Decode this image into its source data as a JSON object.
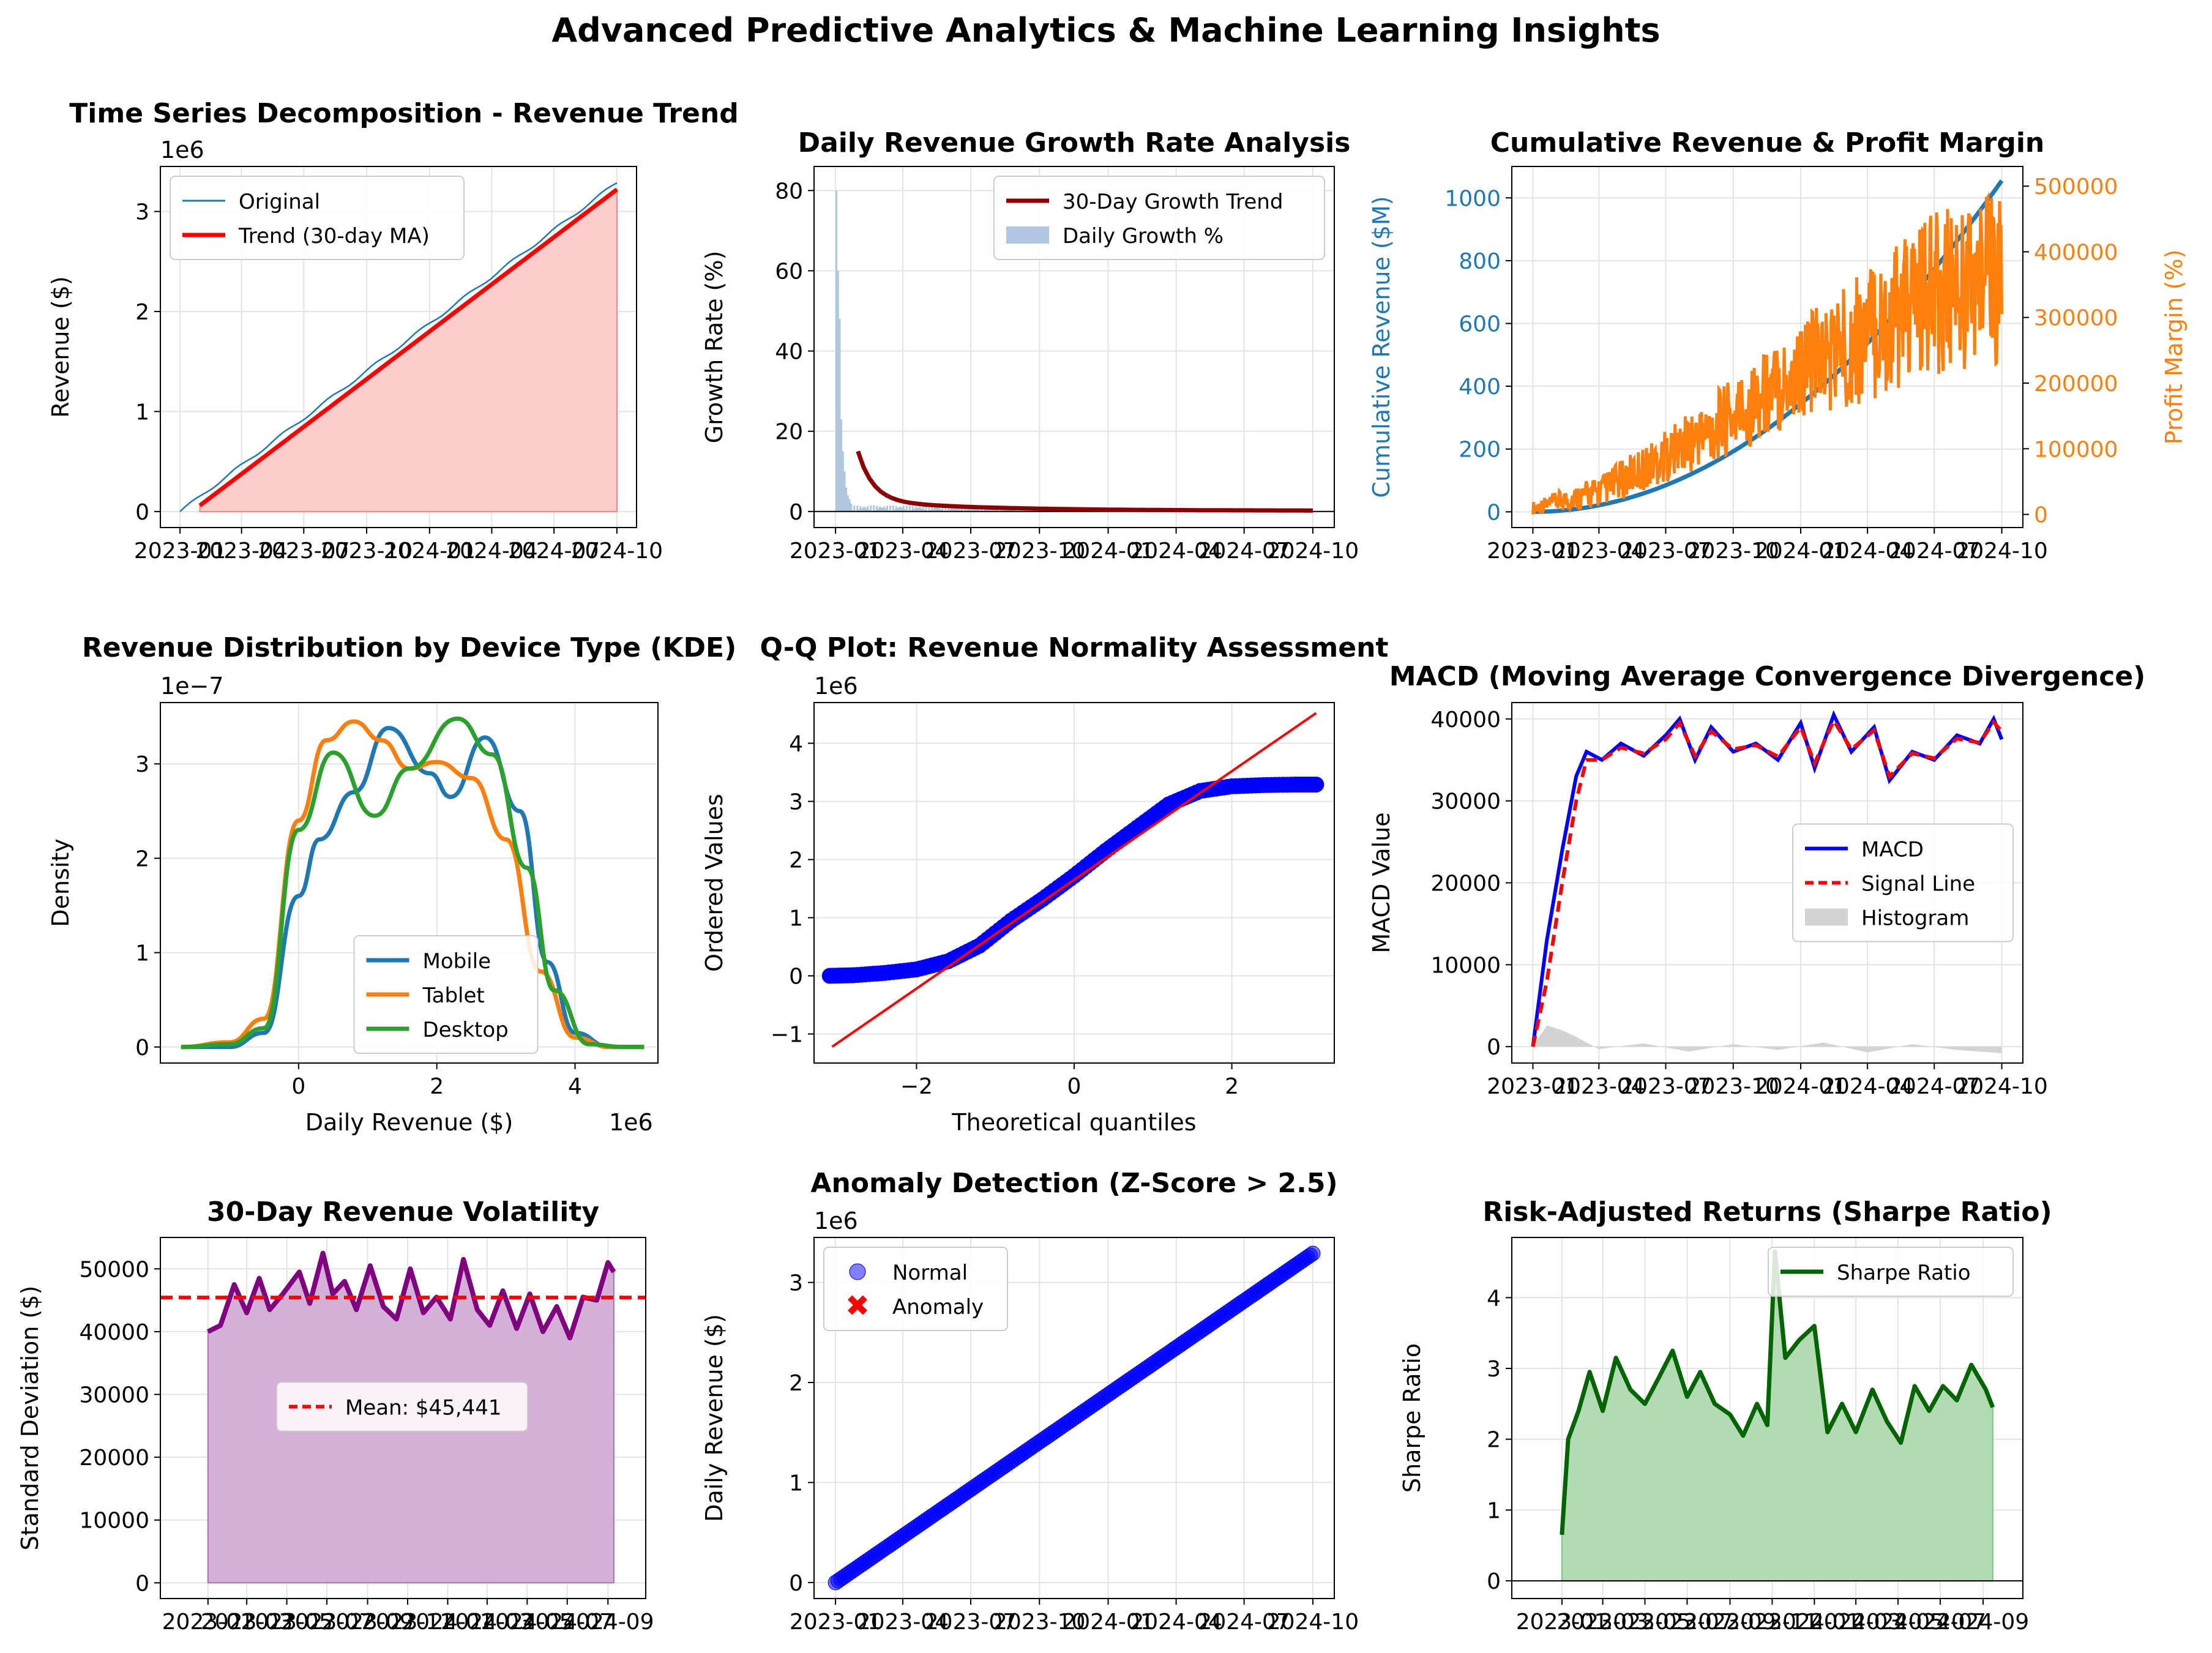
{
  "suptitle": "Advanced Predictive Analytics & Machine Learning Insights",
  "colors": {
    "revenue_blue": "#1f77b4",
    "trend_red": "#ff0000",
    "fill_red": "#ffcccc",
    "growth_bar": "#b0c8df",
    "growth_trend": "#8b0000",
    "profit_orange": "#ff7f0e",
    "tablet": "#ff7f0e",
    "desktop": "#2ca02c",
    "macd_blue": "#0000ff",
    "hist_gray": "#d3d3d3",
    "vol_purple": "#800080",
    "vol_fill": "#d4b0d8",
    "sharpe_green": "#006400",
    "sharpe_fill": "#b3dbb3"
  },
  "chart_data": [
    {
      "id": "ts",
      "type": "line+area",
      "title": "Time Series Decomposition - Revenue Trend",
      "xlabel": "",
      "ylabel": "Revenue ($)",
      "offset_text": "1e6",
      "x_range": [
        "2023-01-01",
        "2024-10-01"
      ],
      "x_ticks": [
        "2023-01",
        "2023-04",
        "2023-07",
        "2023-10",
        "2024-01",
        "2024-04",
        "2024-07",
        "2024-10"
      ],
      "ylim": [
        -0.16,
        3.45
      ],
      "y_ticks": [
        "0",
        "1",
        "2",
        "3"
      ],
      "legend_position": "upper-left",
      "grid": true,
      "series": [
        {
          "name": "Original",
          "from": "2023-01-01",
          "to": "2024-10-01",
          "y_start": 0.0,
          "y_end": 3.29,
          "units": "millions"
        },
        {
          "name": "Trend (30-day MA)",
          "from": "2023-01-30",
          "to": "2024-10-01",
          "y_start": 0.06,
          "y_end": 3.22,
          "units": "millions"
        }
      ]
    },
    {
      "id": "growth",
      "type": "bar+line",
      "title": "Daily Revenue Growth Rate Analysis",
      "xlabel": "",
      "ylabel": "Growth Rate (%)",
      "x_range": [
        "2023-01-01",
        "2024-10-01"
      ],
      "x_ticks": [
        "2023-01",
        "2023-04",
        "2023-07",
        "2023-10",
        "2024-01",
        "2024-04",
        "2024-07",
        "2024-10"
      ],
      "ylim": [
        -4,
        86
      ],
      "y_ticks": [
        "0",
        "20",
        "40",
        "60",
        "80"
      ],
      "legend_position": "upper-right",
      "grid": true,
      "series": [
        {
          "name": "30-Day Growth Trend",
          "from": "2023-01-31",
          "to": "2024-10-01",
          "y_start": 12.5,
          "y_end": 0.2
        },
        {
          "name": "Daily Growth %",
          "peak_values": [
            80,
            60,
            48,
            23,
            15,
            10,
            6,
            4,
            3,
            2
          ]
        }
      ]
    },
    {
      "id": "cum",
      "type": "dual-axis line",
      "title": "Cumulative Revenue & Profit Margin",
      "xlabel": "",
      "ylabel": "Cumulative Revenue ($M)",
      "ylabel_right": "Profit Margin (%)",
      "x_range": [
        "2023-01-01",
        "2024-10-01"
      ],
      "x_ticks": [
        "2023-01",
        "2023-04",
        "2023-07",
        "2023-10",
        "2024-01",
        "2024-04",
        "2024-07",
        "2024-10"
      ],
      "ylim": [
        -50,
        1100
      ],
      "y_ticks": [
        "0",
        "200",
        "400",
        "600",
        "800",
        "1000"
      ],
      "ylim_right": [
        -20000,
        530000
      ],
      "y_ticks_right": [
        "0",
        "100000",
        "200000",
        "300000",
        "400000",
        "500000"
      ],
      "grid": true,
      "series": [
        {
          "name": "Cumulative Revenue",
          "from": "2023-01-01",
          "to": "2024-10-01",
          "y_start": 0,
          "y_end": 1055
        },
        {
          "name": "Profit Margin",
          "from": "2023-01-01",
          "to": "2024-10-01",
          "y_start": 0,
          "y_end": 330000,
          "band_high": [
            20000,
            60000,
            130000,
            210000,
            300000,
            380000,
            460000,
            500000
          ],
          "band_low": [
            0,
            10000,
            50000,
            90000,
            140000,
            170000,
            210000,
            230000
          ]
        }
      ]
    },
    {
      "id": "kde",
      "type": "line",
      "title": "Revenue Distribution by Device Type (KDE)",
      "xlabel": "Daily Revenue ($)",
      "x_offset_text": "1e6",
      "ylabel": "Density",
      "offset_text": "1e−7",
      "xlim": [
        -2.0,
        5.2
      ],
      "x_ticks": [
        "0",
        "2",
        "4"
      ],
      "ylim": [
        -0.17,
        3.65
      ],
      "y_ticks": [
        "0",
        "1",
        "2",
        "3"
      ],
      "legend_position": "lower-center",
      "grid": true,
      "series": [
        {
          "name": "Mobile",
          "x": [
            -1.7,
            -1.0,
            -0.5,
            0.0,
            0.3,
            0.8,
            1.3,
            1.9,
            2.2,
            2.7,
            3.2,
            3.6,
            4.0,
            4.5,
            5.0
          ],
          "y": [
            0.0,
            0.0,
            0.15,
            1.6,
            2.2,
            2.7,
            3.38,
            2.9,
            2.65,
            3.28,
            2.5,
            0.9,
            0.15,
            0.0,
            0.0
          ]
        },
        {
          "name": "Tablet",
          "x": [
            -1.7,
            -1.0,
            -0.5,
            0.0,
            0.4,
            0.8,
            1.2,
            1.6,
            2.0,
            2.5,
            3.0,
            3.5,
            4.0,
            4.5,
            5.0
          ],
          "y": [
            0.0,
            0.05,
            0.3,
            2.4,
            3.25,
            3.45,
            3.25,
            2.95,
            3.02,
            2.85,
            2.2,
            0.8,
            0.1,
            0.0,
            0.0
          ]
        },
        {
          "name": "Desktop",
          "x": [
            -1.7,
            -1.0,
            -0.5,
            0.0,
            0.5,
            1.1,
            1.6,
            2.3,
            2.8,
            3.3,
            3.7,
            4.2,
            4.7,
            5.0
          ],
          "y": [
            0.0,
            0.03,
            0.2,
            2.3,
            3.12,
            2.45,
            2.95,
            3.48,
            3.1,
            1.9,
            0.6,
            0.03,
            0.0,
            0.0
          ]
        }
      ]
    },
    {
      "id": "qq",
      "type": "scatter+line",
      "title": "Q-Q Plot: Revenue Normality Assessment",
      "xlabel": "Theoretical quantiles",
      "ylabel": "Ordered Values",
      "offset_text": "1e6",
      "xlim": [
        -3.3,
        3.3
      ],
      "x_ticks": [
        "−2",
        "0",
        "2"
      ],
      "ylim": [
        -1.5,
        4.7
      ],
      "y_ticks": [
        "−1",
        "0",
        "1",
        "2",
        "3",
        "4"
      ],
      "grid": true,
      "series": [
        {
          "name": "Ordered Values",
          "x": [
            -3.1,
            -2.8,
            -2.4,
            -2.0,
            -1.6,
            -1.2,
            -0.8,
            -0.4,
            0.0,
            0.4,
            0.8,
            1.2,
            1.6,
            2.0,
            2.4,
            2.8,
            3.07
          ],
          "y": [
            0.0,
            0.01,
            0.05,
            0.11,
            0.25,
            0.52,
            0.95,
            1.32,
            1.72,
            2.15,
            2.55,
            2.95,
            3.18,
            3.26,
            3.28,
            3.29,
            3.29
          ]
        },
        {
          "name": "Reference Line",
          "x": [
            -3.07,
            3.07
          ],
          "y": [
            -1.22,
            4.52
          ]
        }
      ]
    },
    {
      "id": "macd",
      "type": "line+bar",
      "title": "MACD (Moving Average Convergence Divergence)",
      "xlabel": "",
      "ylabel": "MACD Value",
      "x_range": [
        "2023-01-01",
        "2024-10-01"
      ],
      "x_ticks": [
        "2023-01",
        "2023-04",
        "2023-07",
        "2023-10",
        "2024-01",
        "2024-04",
        "2024-07",
        "2024-10"
      ],
      "ylim": [
        -2000,
        42000
      ],
      "y_ticks": [
        "0",
        "10000",
        "20000",
        "30000",
        "40000"
      ],
      "legend_position": "center-right",
      "grid": true,
      "series": [
        {
          "name": "MACD",
          "dates": [
            "2023-01-01",
            "2023-01-20",
            "2023-02-10",
            "2023-03-01",
            "2023-03-15",
            "2023-04-05",
            "2023-05-01",
            "2023-06-01",
            "2023-07-01",
            "2023-07-20",
            "2023-08-10",
            "2023-09-01",
            "2023-10-01",
            "2023-11-01",
            "2023-12-01",
            "2024-01-01",
            "2024-01-20",
            "2024-02-15",
            "2024-03-10",
            "2024-04-10",
            "2024-05-01",
            "2024-06-01",
            "2024-07-01",
            "2024-08-01",
            "2024-09-01",
            "2024-09-20",
            "2024-10-01"
          ],
          "values": [
            0,
            13000,
            24000,
            33000,
            36000,
            35000,
            37000,
            35500,
            38000,
            40000,
            35000,
            39000,
            36000,
            37000,
            35000,
            39500,
            34000,
            40500,
            36000,
            39000,
            32500,
            36000,
            35000,
            38000,
            37000,
            40000,
            37500
          ]
        },
        {
          "name": "Signal Line",
          "dates": [
            "2023-01-01",
            "2023-01-20",
            "2023-02-10",
            "2023-03-01",
            "2023-03-15",
            "2023-04-05",
            "2023-05-01",
            "2023-06-01",
            "2023-07-01",
            "2023-07-20",
            "2023-08-10",
            "2023-09-01",
            "2023-10-01",
            "2023-11-01",
            "2023-12-01",
            "2024-01-01",
            "2024-01-20",
            "2024-02-15",
            "2024-03-10",
            "2024-04-10",
            "2024-05-01",
            "2024-06-01",
            "2024-07-01",
            "2024-08-01",
            "2024-09-01",
            "2024-09-20",
            "2024-10-01"
          ],
          "values": [
            0,
            8000,
            20000,
            30000,
            35000,
            35000,
            36500,
            35800,
            37500,
            39500,
            35500,
            38500,
            36300,
            36800,
            35400,
            39000,
            34600,
            39800,
            36300,
            38600,
            33000,
            35800,
            35200,
            37600,
            37100,
            39600,
            38500
          ]
        },
        {
          "name": "Histogram",
          "dates": [
            "2023-01-01",
            "2023-01-20",
            "2023-02-10",
            "2023-03-01",
            "2023-04-01",
            "2023-06-01",
            "2023-08-01",
            "2023-10-01",
            "2023-12-01",
            "2024-02-01",
            "2024-04-01",
            "2024-06-01",
            "2024-08-01",
            "2024-10-01"
          ],
          "values": [
            0,
            2600,
            2000,
            1200,
            -300,
            400,
            -600,
            300,
            -400,
            500,
            -700,
            300,
            -400,
            -800
          ]
        }
      ]
    },
    {
      "id": "vol",
      "type": "line+area",
      "title": "30-Day Revenue Volatility",
      "xlabel": "",
      "ylabel": "Standard Deviation ($)",
      "x_range": [
        "2022-11-20",
        "2024-09-28"
      ],
      "x_ticks": [
        "2023-01",
        "2023-03",
        "2023-05",
        "2023-07",
        "2023-09",
        "2023-11",
        "2024-01",
        "2024-03",
        "2024-05",
        "2024-07",
        "2024-09"
      ],
      "ylim": [
        -2500,
        55000
      ],
      "y_ticks": [
        "0",
        "10000",
        "20000",
        "30000",
        "40000",
        "50000"
      ],
      "mean_value": 45441,
      "mean_label": "Mean: $45,441",
      "grid": true,
      "series": [
        {
          "name": "Volatility",
          "dates": [
            "2023-01-01",
            "2023-01-20",
            "2023-02-10",
            "2023-03-01",
            "2023-03-20",
            "2023-04-05",
            "2023-04-25",
            "2023-05-20",
            "2023-06-05",
            "2023-06-25",
            "2023-07-10",
            "2023-07-28",
            "2023-08-15",
            "2023-09-05",
            "2023-09-25",
            "2023-10-15",
            "2023-11-05",
            "2023-11-25",
            "2023-12-15",
            "2024-01-05",
            "2024-01-25",
            "2024-02-15",
            "2024-03-05",
            "2024-03-25",
            "2024-04-15",
            "2024-05-05",
            "2024-05-25",
            "2024-06-15",
            "2024-07-05",
            "2024-07-25",
            "2024-08-15",
            "2024-09-01",
            "2024-09-10"
          ],
          "values": [
            40000,
            41000,
            47500,
            43000,
            48500,
            43500,
            46000,
            49500,
            44500,
            52500,
            46000,
            48000,
            43500,
            50500,
            44000,
            42000,
            50000,
            43000,
            45500,
            42000,
            51500,
            43500,
            41000,
            46500,
            40500,
            46000,
            40000,
            44000,
            39000,
            45500,
            45000,
            51000,
            49500
          ]
        }
      ]
    },
    {
      "id": "anom",
      "type": "scatter",
      "title": "Anomaly Detection (Z-Score > 2.5)",
      "xlabel": "",
      "ylabel": "Daily Revenue ($)",
      "offset_text": "1e6",
      "x_range": [
        "2023-01-01",
        "2024-10-01"
      ],
      "x_ticks": [
        "2023-01",
        "2023-04",
        "2023-07",
        "2023-10",
        "2024-01",
        "2024-04",
        "2024-07",
        "2024-10"
      ],
      "ylim": [
        -0.16,
        3.45
      ],
      "y_ticks": [
        "0",
        "1",
        "2",
        "3"
      ],
      "legend_position": "upper-left",
      "grid": true,
      "series": [
        {
          "name": "Normal",
          "from": "2023-01-01",
          "to": "2024-10-01",
          "y_start": 0.0,
          "y_end": 3.29,
          "units": "millions"
        },
        {
          "name": "Anomaly",
          "values": []
        }
      ]
    },
    {
      "id": "sharpe",
      "type": "line+area",
      "title": "Risk-Adjusted Returns (Sharpe Ratio)",
      "xlabel": "",
      "ylabel": "Sharpe Ratio",
      "x_range": [
        "2022-11-20",
        "2024-09-28"
      ],
      "x_ticks": [
        "2023-01",
        "2023-03",
        "2023-05",
        "2023-07",
        "2023-09",
        "2023-11",
        "2024-01",
        "2024-03",
        "2024-05",
        "2024-07",
        "2024-09"
      ],
      "ylim": [
        -0.25,
        4.85
      ],
      "y_ticks": [
        "0",
        "1",
        "2",
        "3",
        "4"
      ],
      "legend_position": "upper-right",
      "grid": true,
      "series": [
        {
          "name": "Sharpe Ratio",
          "dates": [
            "2023-01-01",
            "2023-01-10",
            "2023-01-25",
            "2023-02-10",
            "2023-03-01",
            "2023-03-20",
            "2023-04-10",
            "2023-05-01",
            "2023-05-20",
            "2023-06-10",
            "2023-07-01",
            "2023-07-20",
            "2023-08-10",
            "2023-09-01",
            "2023-09-20",
            "2023-10-10",
            "2023-10-25",
            "2023-11-05",
            "2023-11-20",
            "2023-12-10",
            "2024-01-01",
            "2024-01-20",
            "2024-02-10",
            "2024-03-01",
            "2024-03-25",
            "2024-04-15",
            "2024-05-05",
            "2024-05-25",
            "2024-06-15",
            "2024-07-05",
            "2024-07-25",
            "2024-08-15",
            "2024-09-05",
            "2024-09-15"
          ],
          "values": [
            0.65,
            2.0,
            2.4,
            2.95,
            2.4,
            3.15,
            2.7,
            2.5,
            2.85,
            3.25,
            2.6,
            2.95,
            2.5,
            2.35,
            2.05,
            2.5,
            2.2,
            4.65,
            3.15,
            3.4,
            3.6,
            2.1,
            2.5,
            2.1,
            2.7,
            2.25,
            1.95,
            2.75,
            2.4,
            2.75,
            2.55,
            3.05,
            2.7,
            2.45
          ]
        }
      ]
    }
  ]
}
